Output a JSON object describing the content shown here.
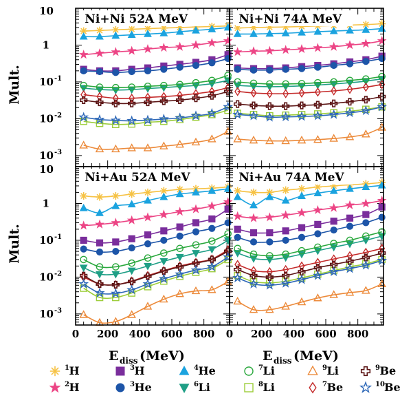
{
  "chart_data": {
    "type": "scatter",
    "xlabel": "E",
    "xlabel_sub": "diss",
    "xlabel_unit": "(MeV)",
    "ylabel": "Mult.",
    "y_scale": "log",
    "ylim": [
      0.0005,
      10
    ],
    "xlim": [
      0,
      960
    ],
    "x_ticks": [
      "0",
      "200",
      "400",
      "600",
      "800"
    ],
    "y_ticks": [
      {
        "base": "10",
        "exp": "",
        "value": 10
      },
      {
        "base": "1",
        "exp": "",
        "value": 1
      },
      {
        "base": "10",
        "exp": "-1",
        "value": 0.1
      },
      {
        "base": "10",
        "exp": "-2",
        "value": 0.01
      },
      {
        "base": "10",
        "exp": "-3",
        "value": 0.001
      }
    ],
    "x": [
      50,
      150,
      250,
      350,
      450,
      550,
      650,
      750,
      850,
      950
    ],
    "species": [
      {
        "key": "H1",
        "sup": "1",
        "el": "H",
        "marker": "asterisk",
        "filled": true,
        "color": "#f6c244"
      },
      {
        "key": "H2",
        "sup": "2",
        "el": "H",
        "marker": "star",
        "filled": true,
        "color": "#ec4585"
      },
      {
        "key": "H3",
        "sup": "3",
        "el": "H",
        "marker": "square",
        "filled": true,
        "color": "#7a2e9c"
      },
      {
        "key": "He3",
        "sup": "3",
        "el": "He",
        "marker": "circle",
        "filled": true,
        "color": "#1d55a8"
      },
      {
        "key": "He4",
        "sup": "4",
        "el": "He",
        "marker": "triangle-up",
        "filled": true,
        "color": "#1ba3df"
      },
      {
        "key": "Li6",
        "sup": "6",
        "el": "Li",
        "marker": "triangle-down",
        "filled": true,
        "color": "#1f9f86"
      },
      {
        "key": "Li7",
        "sup": "7",
        "el": "Li",
        "marker": "circle",
        "filled": false,
        "color": "#2aa83d"
      },
      {
        "key": "Li8",
        "sup": "8",
        "el": "Li",
        "marker": "square",
        "filled": false,
        "color": "#9ccd39"
      },
      {
        "key": "Li9",
        "sup": "9",
        "el": "Li",
        "marker": "triangle-up",
        "filled": false,
        "color": "#ec8a3a"
      },
      {
        "key": "Be7",
        "sup": "7",
        "el": "Be",
        "marker": "diamond",
        "filled": false,
        "color": "#c42b2b"
      },
      {
        "key": "Be9",
        "sup": "9",
        "el": "Be",
        "marker": "cross",
        "filled": false,
        "color": "#5c1616"
      },
      {
        "key": "Be10",
        "sup": "10",
        "el": "Be",
        "marker": "star",
        "filled": false,
        "color": "#2e68b8"
      }
    ],
    "panels": [
      {
        "title": "Ni+Ni 52A MeV",
        "series": {
          "H1": [
            2.4,
            2.5,
            2.6,
            2.7,
            2.8,
            2.9,
            3.0,
            3.1,
            3.2,
            3.3
          ],
          "H2": [
            0.55,
            0.6,
            0.65,
            0.7,
            0.78,
            0.85,
            0.9,
            1.0,
            1.15,
            1.3
          ],
          "H3": [
            0.22,
            0.2,
            0.2,
            0.22,
            0.24,
            0.27,
            0.3,
            0.34,
            0.4,
            0.55
          ],
          "He3": [
            0.2,
            0.19,
            0.18,
            0.19,
            0.2,
            0.22,
            0.25,
            0.28,
            0.33,
            0.43
          ],
          "He4": [
            1.7,
            1.7,
            1.8,
            1.9,
            2.0,
            2.1,
            2.3,
            2.5,
            2.7,
            3.0
          ],
          "Li6": [
            0.068,
            0.062,
            0.06,
            0.062,
            0.066,
            0.07,
            0.075,
            0.08,
            0.09,
            0.11
          ],
          "Li7": [
            0.08,
            0.072,
            0.07,
            0.072,
            0.076,
            0.08,
            0.085,
            0.095,
            0.11,
            0.15
          ],
          "Li8": [
            0.0085,
            0.0075,
            0.007,
            0.0072,
            0.008,
            0.0085,
            0.0095,
            0.011,
            0.013,
            0.017
          ],
          "Li9": [
            0.0019,
            0.0015,
            0.0015,
            0.0016,
            0.0016,
            0.0018,
            0.002,
            0.0023,
            0.0028,
            0.0045
          ],
          "Be7": [
            0.045,
            0.04,
            0.036,
            0.036,
            0.038,
            0.04,
            0.043,
            0.048,
            0.055,
            0.07
          ],
          "Be9": [
            0.032,
            0.028,
            0.026,
            0.026,
            0.028,
            0.03,
            0.032,
            0.036,
            0.042,
            0.055
          ],
          "Be10": [
            0.011,
            0.0095,
            0.009,
            0.0088,
            0.0092,
            0.0098,
            0.0105,
            0.012,
            0.014,
            0.021
          ]
        }
      },
      {
        "title": "Ni+Ni 74A MeV",
        "series": {
          "H1": [
            2.9,
            3.0,
            3.05,
            3.1,
            3.2,
            3.3,
            3.4,
            3.5,
            3.6,
            3.8
          ],
          "H2": [
            0.65,
            0.68,
            0.7,
            0.74,
            0.78,
            0.84,
            0.9,
            1.0,
            1.1,
            1.3
          ],
          "H3": [
            0.24,
            0.23,
            0.23,
            0.24,
            0.26,
            0.28,
            0.31,
            0.35,
            0.4,
            0.5
          ],
          "He3": [
            0.22,
            0.21,
            0.21,
            0.22,
            0.23,
            0.25,
            0.28,
            0.31,
            0.36,
            0.43
          ],
          "He4": [
            2.0,
            2.0,
            2.05,
            2.1,
            2.2,
            2.3,
            2.4,
            2.5,
            2.6,
            2.8
          ],
          "Li6": [
            0.08,
            0.076,
            0.074,
            0.075,
            0.078,
            0.082,
            0.088,
            0.095,
            0.105,
            0.12
          ],
          "Li7": [
            0.1,
            0.092,
            0.088,
            0.088,
            0.09,
            0.095,
            0.1,
            0.11,
            0.12,
            0.14
          ],
          "Li8": [
            0.014,
            0.013,
            0.012,
            0.0125,
            0.013,
            0.0135,
            0.0145,
            0.016,
            0.018,
            0.021
          ],
          "Li9": [
            0.0028,
            0.0026,
            0.0025,
            0.0025,
            0.0026,
            0.0027,
            0.0029,
            0.0032,
            0.0038,
            0.0058
          ],
          "Be7": [
            0.055,
            0.05,
            0.048,
            0.048,
            0.05,
            0.053,
            0.057,
            0.063,
            0.072,
            0.085
          ],
          "Be9": [
            0.025,
            0.023,
            0.022,
            0.022,
            0.023,
            0.024,
            0.026,
            0.029,
            0.033,
            0.04
          ],
          "Be10": [
            0.013,
            0.012,
            0.011,
            0.0112,
            0.0115,
            0.012,
            0.013,
            0.0145,
            0.0165,
            0.021
          ]
        }
      },
      {
        "title": "Ni+Au 52A MeV",
        "series": {
          "H1": [
            1.6,
            1.5,
            1.6,
            1.8,
            2.0,
            2.2,
            2.4,
            2.5,
            2.6,
            2.8
          ],
          "H2": [
            0.25,
            0.27,
            0.3,
            0.35,
            0.42,
            0.5,
            0.6,
            0.7,
            0.85,
            1.1
          ],
          "H3": [
            0.1,
            0.085,
            0.09,
            0.11,
            0.14,
            0.18,
            0.23,
            0.3,
            0.38,
            0.7
          ],
          "He3": [
            0.058,
            0.048,
            0.05,
            0.062,
            0.08,
            0.1,
            0.13,
            0.17,
            0.21,
            0.3
          ],
          "He4": [
            0.75,
            0.55,
            0.85,
            0.95,
            1.2,
            1.5,
            1.8,
            2.0,
            2.2,
            2.5
          ],
          "Li6": [
            0.018,
            0.012,
            0.012,
            0.015,
            0.02,
            0.027,
            0.035,
            0.045,
            0.057,
            0.1
          ],
          "Li7": [
            0.03,
            0.019,
            0.019,
            0.024,
            0.033,
            0.045,
            0.06,
            0.075,
            0.095,
            0.15
          ],
          "Li8": [
            0.005,
            0.0028,
            0.0028,
            0.0037,
            0.0055,
            0.0078,
            0.0105,
            0.0135,
            0.017,
            0.03
          ],
          "Li9": [
            0.00095,
            0.00058,
            0.00062,
            0.00095,
            0.0016,
            0.0025,
            0.0035,
            0.0042,
            0.0045,
            0.0075
          ],
          "Be7": [
            0.01,
            0.0065,
            0.0062,
            0.0078,
            0.011,
            0.015,
            0.02,
            0.025,
            0.031,
            0.055
          ],
          "Be9": [
            0.011,
            0.0065,
            0.0062,
            0.0076,
            0.0105,
            0.0145,
            0.019,
            0.024,
            0.03,
            0.05
          ],
          "Be10": [
            0.0065,
            0.0037,
            0.0036,
            0.0045,
            0.0065,
            0.009,
            0.012,
            0.0155,
            0.019,
            0.035
          ]
        }
      },
      {
        "title": "Ni+Au 74A MeV",
        "series": {
          "H1": [
            2.2,
            2.0,
            2.0,
            2.3,
            2.5,
            2.8,
            3.0,
            3.2,
            3.4,
            3.7
          ],
          "H2": [
            0.45,
            0.4,
            0.42,
            0.48,
            0.56,
            0.66,
            0.76,
            0.9,
            1.0,
            1.2
          ],
          "H3": [
            0.2,
            0.16,
            0.16,
            0.18,
            0.22,
            0.27,
            0.33,
            0.4,
            0.5,
            0.8
          ],
          "He3": [
            0.12,
            0.09,
            0.09,
            0.1,
            0.12,
            0.15,
            0.19,
            0.24,
            0.3,
            0.42
          ],
          "He4": [
            1.5,
            0.9,
            1.5,
            1.2,
            1.6,
            1.9,
            2.2,
            2.5,
            2.8,
            3.1
          ],
          "Li6": [
            0.045,
            0.032,
            0.03,
            0.034,
            0.042,
            0.052,
            0.065,
            0.08,
            0.1,
            0.13
          ],
          "Li7": [
            0.06,
            0.042,
            0.038,
            0.042,
            0.052,
            0.065,
            0.082,
            0.1,
            0.13,
            0.17
          ],
          "Li8": [
            0.011,
            0.0075,
            0.007,
            0.0077,
            0.0095,
            0.012,
            0.015,
            0.019,
            0.023,
            0.03
          ],
          "Li9": [
            0.0022,
            0.0013,
            0.0013,
            0.0016,
            0.0021,
            0.0027,
            0.0033,
            0.0038,
            0.0043,
            0.0065
          ],
          "Be7": [
            0.022,
            0.015,
            0.014,
            0.016,
            0.02,
            0.025,
            0.031,
            0.038,
            0.047,
            0.06
          ],
          "Be9": [
            0.016,
            0.011,
            0.01,
            0.011,
            0.014,
            0.018,
            0.022,
            0.027,
            0.034,
            0.045
          ],
          "Be10": [
            0.0095,
            0.0065,
            0.006,
            0.0068,
            0.0085,
            0.011,
            0.014,
            0.017,
            0.021,
            0.028
          ]
        }
      }
    ],
    "legend": {
      "placement": "bottom",
      "rows": [
        [
          "H1",
          "H3",
          "He4",
          "Li7",
          "Li9",
          "Be9"
        ],
        [
          "H2",
          "He3",
          "Li6",
          "Li8",
          "Be7",
          "Be10"
        ]
      ]
    }
  }
}
